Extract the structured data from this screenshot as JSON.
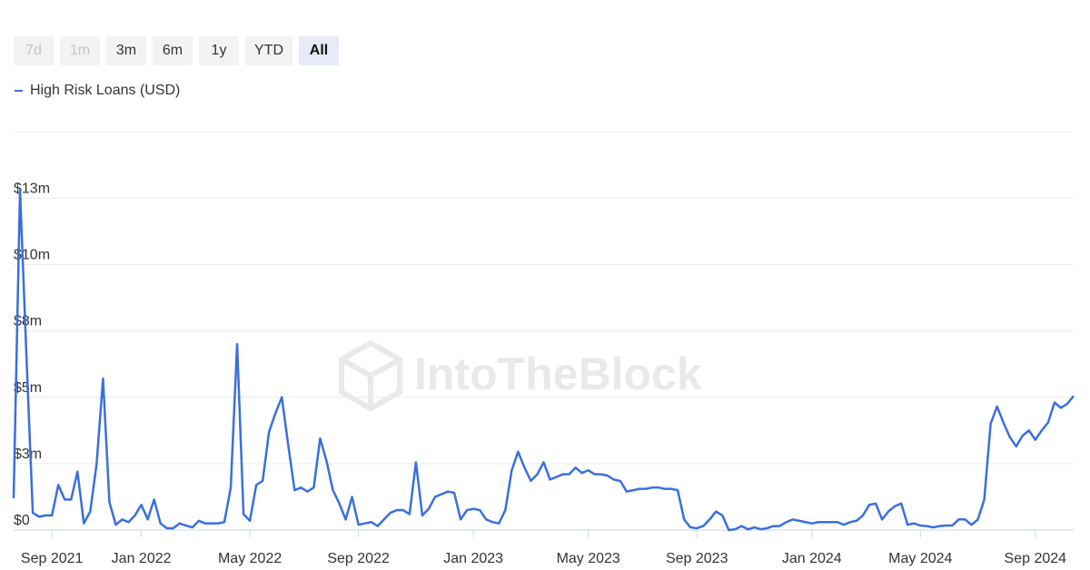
{
  "range_selector": {
    "buttons": [
      "7d",
      "1m",
      "3m",
      "6m",
      "1y",
      "YTD",
      "All"
    ]
  },
  "chart_data": {
    "type": "line",
    "watermark": "IntoTheBlock",
    "categories": [
      null,
      null,
      null,
      null,
      null,
      null,
      "Sep 2021",
      null,
      null,
      null,
      null,
      null,
      null,
      null,
      null,
      null,
      null,
      null,
      null,
      null,
      "Jan 2022",
      null,
      null,
      null,
      null,
      null,
      null,
      null,
      null,
      null,
      null,
      null,
      null,
      null,
      null,
      null,
      null,
      "May 2022",
      null,
      null,
      null,
      null,
      null,
      null,
      null,
      null,
      null,
      null,
      null,
      null,
      null,
      null,
      null,
      null,
      "Sep 2022",
      null,
      null,
      null,
      null,
      null,
      null,
      null,
      null,
      null,
      null,
      null,
      null,
      null,
      null,
      null,
      null,
      null,
      "Jan 2023",
      null,
      null,
      null,
      null,
      null,
      null,
      null,
      null,
      null,
      null,
      null,
      null,
      null,
      null,
      null,
      null,
      null,
      "May 2023",
      null,
      null,
      null,
      null,
      null,
      null,
      null,
      null,
      null,
      null,
      null,
      null,
      null,
      null,
      null,
      null,
      "Sep 2023",
      null,
      null,
      null,
      null,
      null,
      null,
      null,
      null,
      null,
      null,
      null,
      null,
      null,
      null,
      null,
      null,
      null,
      "Jan 2024",
      null,
      null,
      null,
      null,
      null,
      null,
      null,
      null,
      null,
      null,
      null,
      null,
      null,
      null,
      null,
      null,
      "May 2024",
      null,
      null,
      null,
      null,
      null,
      null,
      null,
      null,
      null,
      null,
      null,
      null,
      null,
      null,
      null,
      null,
      null,
      "Sep 2024",
      null,
      null,
      null,
      null,
      null,
      null
    ],
    "series": [
      {
        "name": "High Risk Loans (USD)",
        "color": "#3a6fdf",
        "values": [
          1200000.0,
          12800000.0,
          6600000.0,
          650000.0,
          500000.0,
          550000.0,
          550000.0,
          1700000.0,
          1150000.0,
          1150000.0,
          2200000.0,
          250000.0,
          700000.0,
          2500000.0,
          5700000.0,
          1050000.0,
          200000.0,
          400000.0,
          300000.0,
          550000.0,
          950000.0,
          400000.0,
          1150000.0,
          250000.0,
          70000.0,
          70000.0,
          250000.0,
          170000.0,
          100000.0,
          350000.0,
          250000.0,
          250000.0,
          250000.0,
          300000.0,
          1600000.0,
          7000000.0,
          600000.0,
          350000.0,
          1700000.0,
          1850000.0,
          3700000.0,
          4400000.0,
          5000000.0,
          3200000.0,
          1500000.0,
          1600000.0,
          1450000.0,
          1600000.0,
          3450000.0,
          2600000.0,
          1500000.0,
          1000000.0,
          400000.0,
          1250000.0,
          200000.0,
          250000.0,
          300000.0,
          150000.0,
          400000.0,
          650000.0,
          750000.0,
          750000.0,
          600000.0,
          2550000.0,
          550000.0,
          800000.0,
          1250000.0,
          1350000.0,
          1450000.0,
          1400000.0,
          400000.0,
          750000.0,
          800000.0,
          750000.0,
          400000.0,
          300000.0,
          250000.0,
          750000.0,
          2250000.0,
          2950000.0,
          2350000.0,
          1850000.0,
          2100000.0,
          2550000.0,
          1900000.0,
          2000000.0,
          2100000.0,
          2100000.0,
          2350000.0,
          2150000.0,
          2250000.0,
          2100000.0,
          2100000.0,
          2050000.0,
          1900000.0,
          1850000.0,
          1450000.0,
          1500000.0,
          1550000.0,
          1550000.0,
          1600000.0,
          1600000.0,
          1550000.0,
          1550000.0,
          1500000.0,
          400000.0,
          100000.0,
          70000.0,
          150000.0,
          400000.0,
          700000.0,
          550000.0,
          0,
          30000.0,
          150000.0,
          30000.0,
          100000.0,
          30000.0,
          70000.0,
          150000.0,
          150000.0,
          300000.0,
          400000.0,
          350000.0,
          300000.0,
          250000.0,
          300000.0,
          300000.0,
          300000.0,
          300000.0,
          200000.0,
          300000.0,
          350000.0,
          550000.0,
          950000.0,
          1000000.0,
          400000.0,
          700000.0,
          900000.0,
          1000000.0,
          200000.0,
          250000.0,
          170000.0,
          150000.0,
          100000.0,
          150000.0,
          170000.0,
          170000.0,
          400000.0,
          400000.0,
          200000.0,
          400000.0,
          1150000.0,
          4000000.0,
          4650000.0,
          4050000.0,
          3500000.0,
          3150000.0,
          3550000.0,
          3750000.0,
          3400000.0,
          3750000.0,
          4050000.0,
          4800000.0,
          4600000.0,
          4750000.0,
          5050000.0
        ]
      }
    ],
    "ylim": [
      0,
      15000000
    ],
    "yticks": [
      {
        "value": 0,
        "label": "$0"
      },
      {
        "value": 2500000,
        "label": "$3m"
      },
      {
        "value": 5000000,
        "label": "$5m"
      },
      {
        "value": 7500000,
        "label": "$8m"
      },
      {
        "value": 10000000,
        "label": "$10m"
      },
      {
        "value": 12500000,
        "label": "$13m"
      }
    ],
    "grid": true,
    "legend": "top-left"
  }
}
